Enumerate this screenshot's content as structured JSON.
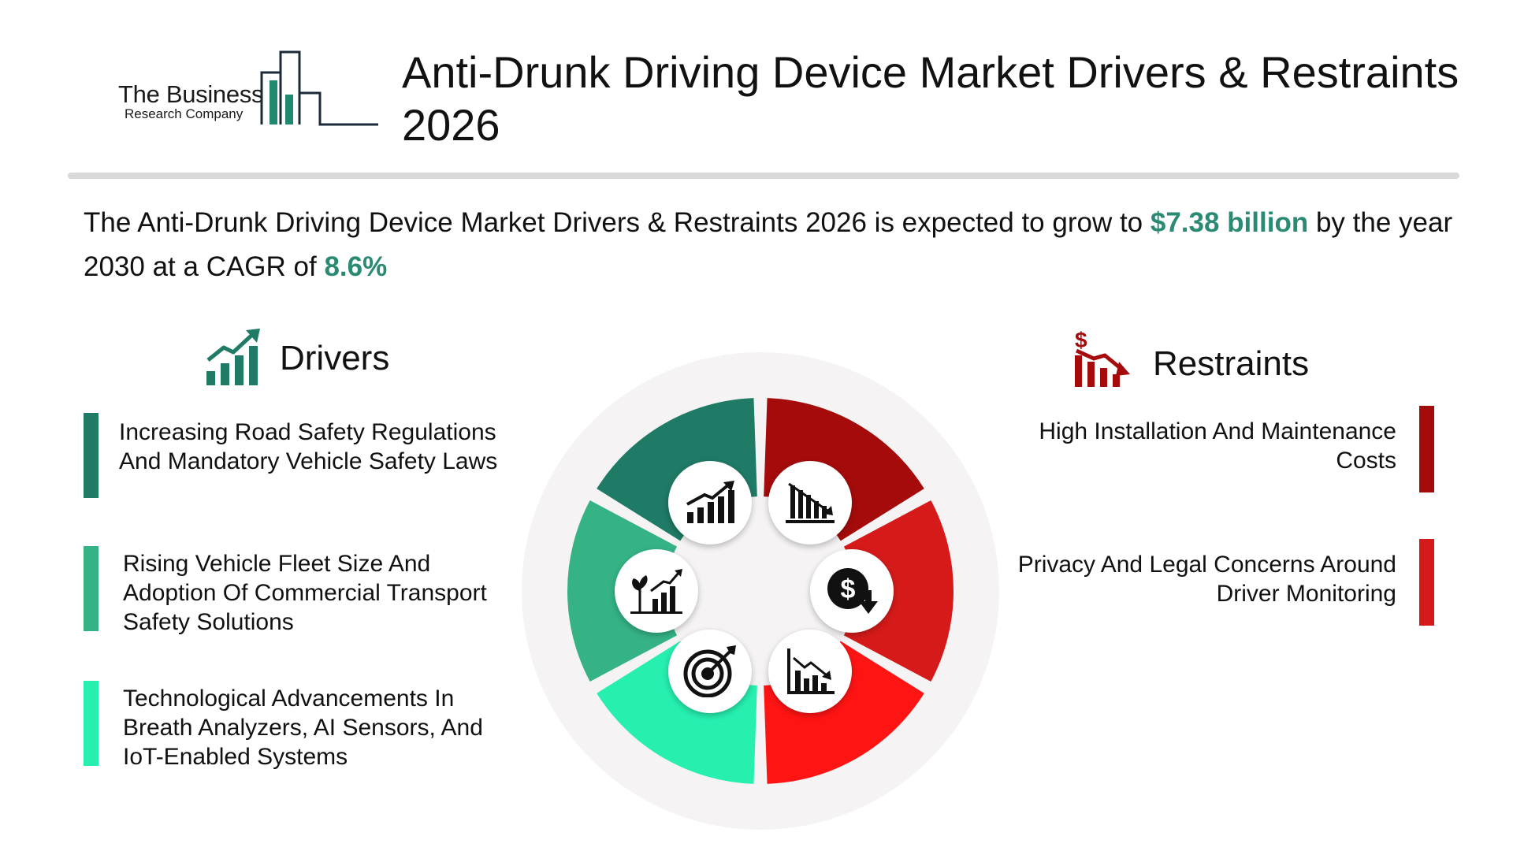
{
  "logo": {
    "line1": "The Business",
    "line2": "Research Company",
    "color": "#1f8a6f"
  },
  "header": {
    "title": "Anti-Drunk Driving Device Market Drivers & Restraints 2026"
  },
  "intro": {
    "prefix": "The Anti-Drunk Driving Device Market Drivers & Restraints 2026  is expected to grow to ",
    "value": "$7.38 billion",
    "middle": " by the year 2030 at a CAGR of ",
    "cagr": "8.6%",
    "highlight_color": "#2a8a73"
  },
  "drivers": {
    "title": "Drivers",
    "icon": "growth-chart-icon",
    "items": [
      {
        "label": "Increasing Road Safety Regulations And Mandatory Vehicle Safety Laws",
        "color": "#1f7a66"
      },
      {
        "label": "Rising Vehicle Fleet Size And Adoption Of Commercial Transport Safety Solutions",
        "color": "#35b385"
      },
      {
        "label": "Technological Advancements In Breath Analyzers, AI Sensors, And IoT-Enabled Systems",
        "color": "#26efb0"
      }
    ]
  },
  "restraints": {
    "title": "Restraints",
    "icon": "dollar-decline-icon",
    "items": [
      {
        "label": "High Installation And Maintenance Costs",
        "color": "#a50b0b"
      },
      {
        "label": "Privacy And Legal Concerns Around Driver Monitoring",
        "color": "#d61a1a"
      }
    ]
  },
  "wheel": {
    "segment_colors": [
      "#1f7a66",
      "#35b385",
      "#26efb0",
      "#a50b0b",
      "#d61a1a",
      "#ff1414"
    ],
    "icons": [
      "growth-chart-icon",
      "decline-chart-icon",
      "plant-growth-icon",
      "dollar-down-icon",
      "target-icon",
      "decline-bars-icon"
    ]
  }
}
